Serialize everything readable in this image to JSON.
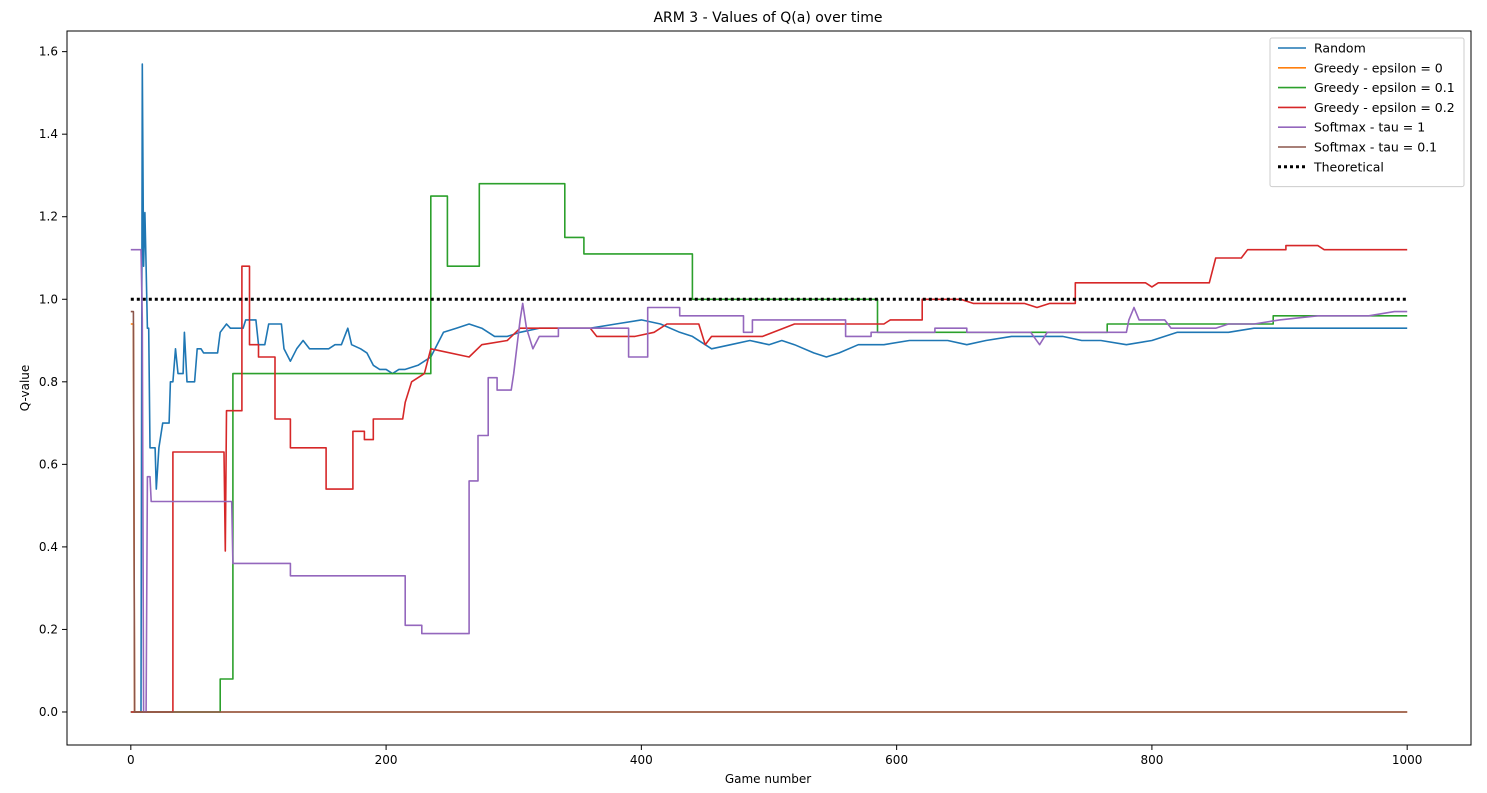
{
  "chart_data": {
    "type": "line",
    "title": "ARM 3 - Values of Q(a) over time",
    "xlabel": "Game number",
    "ylabel": "Q-value",
    "xlim": [
      -50,
      1050
    ],
    "ylim": [
      -0.08,
      1.65
    ],
    "xticks": [
      0,
      200,
      400,
      600,
      800,
      1000
    ],
    "yticks": [
      0.0,
      0.2,
      0.4,
      0.6,
      0.8,
      1.0,
      1.2,
      1.4,
      1.6
    ],
    "xtick_labels": [
      "0",
      "200",
      "400",
      "600",
      "800",
      "1000"
    ],
    "ytick_labels": [
      "0.0",
      "0.2",
      "0.4",
      "0.6",
      "0.8",
      "1.0",
      "1.2",
      "1.4",
      "1.6"
    ],
    "grid": false,
    "legend_position": "top-right",
    "series": [
      {
        "name": "Random",
        "color": "#1f77b4",
        "style": "solid",
        "points": [
          [
            0,
            0
          ],
          [
            8,
            0
          ],
          [
            9,
            1.57
          ],
          [
            10,
            1.08
          ],
          [
            11,
            1.21
          ],
          [
            12,
            1.08
          ],
          [
            13,
            0.93
          ],
          [
            14,
            0.93
          ],
          [
            15,
            0.64
          ],
          [
            19,
            0.64
          ],
          [
            20,
            0.54
          ],
          [
            22,
            0.64
          ],
          [
            25,
            0.7
          ],
          [
            30,
            0.7
          ],
          [
            31,
            0.8
          ],
          [
            33,
            0.8
          ],
          [
            35,
            0.88
          ],
          [
            37,
            0.82
          ],
          [
            41,
            0.82
          ],
          [
            42,
            0.92
          ],
          [
            44,
            0.8
          ],
          [
            50,
            0.8
          ],
          [
            52,
            0.88
          ],
          [
            55,
            0.88
          ],
          [
            57,
            0.87
          ],
          [
            68,
            0.87
          ],
          [
            70,
            0.92
          ],
          [
            75,
            0.94
          ],
          [
            78,
            0.93
          ],
          [
            88,
            0.93
          ],
          [
            90,
            0.95
          ],
          [
            98,
            0.95
          ],
          [
            100,
            0.89
          ],
          [
            105,
            0.89
          ],
          [
            108,
            0.94
          ],
          [
            118,
            0.94
          ],
          [
            120,
            0.88
          ],
          [
            125,
            0.85
          ],
          [
            130,
            0.88
          ],
          [
            135,
            0.9
          ],
          [
            140,
            0.88
          ],
          [
            155,
            0.88
          ],
          [
            160,
            0.89
          ],
          [
            165,
            0.89
          ],
          [
            170,
            0.93
          ],
          [
            173,
            0.89
          ],
          [
            180,
            0.88
          ],
          [
            185,
            0.87
          ],
          [
            190,
            0.84
          ],
          [
            195,
            0.83
          ],
          [
            200,
            0.83
          ],
          [
            205,
            0.82
          ],
          [
            210,
            0.83
          ],
          [
            215,
            0.83
          ],
          [
            225,
            0.84
          ],
          [
            235,
            0.86
          ],
          [
            245,
            0.92
          ],
          [
            255,
            0.93
          ],
          [
            265,
            0.94
          ],
          [
            275,
            0.93
          ],
          [
            285,
            0.91
          ],
          [
            295,
            0.91
          ],
          [
            305,
            0.92
          ],
          [
            320,
            0.93
          ],
          [
            340,
            0.93
          ],
          [
            360,
            0.93
          ],
          [
            380,
            0.94
          ],
          [
            400,
            0.95
          ],
          [
            415,
            0.94
          ],
          [
            430,
            0.92
          ],
          [
            440,
            0.91
          ],
          [
            455,
            0.88
          ],
          [
            470,
            0.89
          ],
          [
            485,
            0.9
          ],
          [
            500,
            0.89
          ],
          [
            510,
            0.9
          ],
          [
            520,
            0.89
          ],
          [
            535,
            0.87
          ],
          [
            545,
            0.86
          ],
          [
            555,
            0.87
          ],
          [
            570,
            0.89
          ],
          [
            590,
            0.89
          ],
          [
            610,
            0.9
          ],
          [
            625,
            0.9
          ],
          [
            640,
            0.9
          ],
          [
            655,
            0.89
          ],
          [
            670,
            0.9
          ],
          [
            690,
            0.91
          ],
          [
            710,
            0.91
          ],
          [
            730,
            0.91
          ],
          [
            745,
            0.9
          ],
          [
            760,
            0.9
          ],
          [
            780,
            0.89
          ],
          [
            800,
            0.9
          ],
          [
            820,
            0.92
          ],
          [
            840,
            0.92
          ],
          [
            860,
            0.92
          ],
          [
            880,
            0.93
          ],
          [
            900,
            0.93
          ],
          [
            920,
            0.93
          ],
          [
            940,
            0.93
          ],
          [
            960,
            0.93
          ],
          [
            980,
            0.93
          ],
          [
            1000,
            0.93
          ]
        ]
      },
      {
        "name": "Greedy - epsilon = 0",
        "color": "#ff7f0e",
        "style": "solid",
        "points": [
          [
            0,
            0.94
          ],
          [
            2,
            0.94
          ],
          [
            3,
            0
          ],
          [
            1000,
            0
          ]
        ]
      },
      {
        "name": "Greedy - epsilon = 0.1",
        "color": "#2ca02c",
        "style": "solid",
        "points": [
          [
            0,
            0
          ],
          [
            70,
            0
          ],
          [
            70,
            0.08
          ],
          [
            80,
            0.08
          ],
          [
            80,
            0.82
          ],
          [
            235,
            0.82
          ],
          [
            235,
            1.25
          ],
          [
            248,
            1.25
          ],
          [
            248,
            1.08
          ],
          [
            273,
            1.08
          ],
          [
            273,
            1.28
          ],
          [
            340,
            1.28
          ],
          [
            340,
            1.15
          ],
          [
            355,
            1.15
          ],
          [
            355,
            1.11
          ],
          [
            440,
            1.11
          ],
          [
            440,
            1.0
          ],
          [
            585,
            1.0
          ],
          [
            585,
            0.92
          ],
          [
            765,
            0.92
          ],
          [
            765,
            0.94
          ],
          [
            895,
            0.94
          ],
          [
            895,
            0.96
          ],
          [
            1000,
            0.96
          ]
        ]
      },
      {
        "name": "Greedy - epsilon = 0.2",
        "color": "#d62728",
        "style": "solid",
        "points": [
          [
            0,
            0
          ],
          [
            33,
            0
          ],
          [
            33,
            0.63
          ],
          [
            73,
            0.63
          ],
          [
            74,
            0.39
          ],
          [
            75,
            0.73
          ],
          [
            87,
            0.73
          ],
          [
            87,
            1.08
          ],
          [
            93,
            1.08
          ],
          [
            93,
            0.89
          ],
          [
            100,
            0.89
          ],
          [
            100,
            0.86
          ],
          [
            113,
            0.86
          ],
          [
            113,
            0.71
          ],
          [
            125,
            0.71
          ],
          [
            125,
            0.64
          ],
          [
            153,
            0.64
          ],
          [
            153,
            0.54
          ],
          [
            174,
            0.54
          ],
          [
            174,
            0.68
          ],
          [
            183,
            0.68
          ],
          [
            183,
            0.66
          ],
          [
            190,
            0.66
          ],
          [
            190,
            0.71
          ],
          [
            213,
            0.71
          ],
          [
            215,
            0.75
          ],
          [
            220,
            0.8
          ],
          [
            230,
            0.82
          ],
          [
            235,
            0.88
          ],
          [
            265,
            0.86
          ],
          [
            275,
            0.89
          ],
          [
            295,
            0.9
          ],
          [
            305,
            0.93
          ],
          [
            360,
            0.93
          ],
          [
            365,
            0.91
          ],
          [
            380,
            0.91
          ],
          [
            395,
            0.91
          ],
          [
            410,
            0.92
          ],
          [
            420,
            0.94
          ],
          [
            445,
            0.94
          ],
          [
            450,
            0.89
          ],
          [
            455,
            0.91
          ],
          [
            495,
            0.91
          ],
          [
            520,
            0.94
          ],
          [
            575,
            0.94
          ],
          [
            590,
            0.94
          ],
          [
            595,
            0.95
          ],
          [
            620,
            0.95
          ],
          [
            620,
            1.0
          ],
          [
            650,
            1.0
          ],
          [
            660,
            0.99
          ],
          [
            700,
            0.99
          ],
          [
            710,
            0.98
          ],
          [
            720,
            0.99
          ],
          [
            740,
            0.99
          ],
          [
            740,
            1.04
          ],
          [
            795,
            1.04
          ],
          [
            800,
            1.03
          ],
          [
            805,
            1.04
          ],
          [
            845,
            1.04
          ],
          [
            850,
            1.1
          ],
          [
            870,
            1.1
          ],
          [
            875,
            1.12
          ],
          [
            905,
            1.12
          ],
          [
            905,
            1.13
          ],
          [
            930,
            1.13
          ],
          [
            935,
            1.12
          ],
          [
            1000,
            1.12
          ]
        ]
      },
      {
        "name": "Softmax - tau = 1",
        "color": "#9467bd",
        "style": "solid",
        "points": [
          [
            0,
            1.12
          ],
          [
            8,
            1.12
          ],
          [
            9,
            0.95
          ],
          [
            10,
            0
          ],
          [
            12,
            0
          ],
          [
            13,
            0.57
          ],
          [
            15,
            0.57
          ],
          [
            16,
            0.51
          ],
          [
            79,
            0.51
          ],
          [
            80,
            0.36
          ],
          [
            125,
            0.36
          ],
          [
            125,
            0.33
          ],
          [
            215,
            0.33
          ],
          [
            215,
            0.21
          ],
          [
            228,
            0.21
          ],
          [
            228,
            0.19
          ],
          [
            265,
            0.19
          ],
          [
            265,
            0.56
          ],
          [
            272,
            0.56
          ],
          [
            272,
            0.67
          ],
          [
            280,
            0.67
          ],
          [
            280,
            0.81
          ],
          [
            287,
            0.81
          ],
          [
            287,
            0.78
          ],
          [
            298,
            0.78
          ],
          [
            300,
            0.82
          ],
          [
            305,
            0.95
          ],
          [
            307,
            0.99
          ],
          [
            310,
            0.93
          ],
          [
            315,
            0.88
          ],
          [
            320,
            0.91
          ],
          [
            335,
            0.91
          ],
          [
            335,
            0.93
          ],
          [
            390,
            0.93
          ],
          [
            390,
            0.86
          ],
          [
            405,
            0.86
          ],
          [
            405,
            0.98
          ],
          [
            430,
            0.98
          ],
          [
            430,
            0.96
          ],
          [
            480,
            0.96
          ],
          [
            480,
            0.92
          ],
          [
            487,
            0.92
          ],
          [
            487,
            0.95
          ],
          [
            560,
            0.95
          ],
          [
            560,
            0.91
          ],
          [
            580,
            0.91
          ],
          [
            580,
            0.92
          ],
          [
            630,
            0.92
          ],
          [
            630,
            0.93
          ],
          [
            655,
            0.93
          ],
          [
            655,
            0.92
          ],
          [
            705,
            0.92
          ],
          [
            712,
            0.89
          ],
          [
            718,
            0.92
          ],
          [
            735,
            0.92
          ],
          [
            750,
            0.92
          ],
          [
            780,
            0.92
          ],
          [
            782,
            0.95
          ],
          [
            786,
            0.98
          ],
          [
            790,
            0.95
          ],
          [
            810,
            0.95
          ],
          [
            815,
            0.93
          ],
          [
            850,
            0.93
          ],
          [
            860,
            0.94
          ],
          [
            880,
            0.94
          ],
          [
            900,
            0.95
          ],
          [
            930,
            0.96
          ],
          [
            970,
            0.96
          ],
          [
            990,
            0.97
          ],
          [
            1000,
            0.97
          ]
        ]
      },
      {
        "name": "Softmax - tau = 0.1",
        "color": "#8c564b",
        "style": "solid",
        "points": [
          [
            0,
            0.97
          ],
          [
            2,
            0.97
          ],
          [
            3,
            0
          ],
          [
            1000,
            0
          ]
        ]
      },
      {
        "name": "Theoretical",
        "color": "#000000",
        "style": "dotted",
        "points": [
          [
            0,
            1.0
          ],
          [
            1000,
            1.0
          ]
        ]
      }
    ]
  }
}
